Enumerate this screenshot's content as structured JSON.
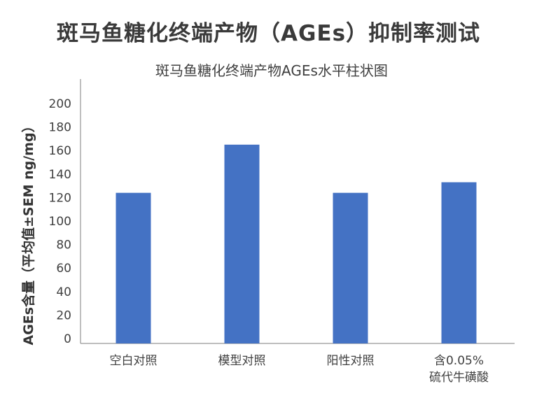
{
  "page_title": "斑马鱼糖化终端产物（AGEs）抑制率测试",
  "chart_data": {
    "type": "bar",
    "title": "斑马鱼糖化终端产物AGEs水平柱状图",
    "ylabel": "AGEs含量（平均值±SEM ng/mg）",
    "xlabel": "",
    "categories": [
      [
        "空白对照"
      ],
      [
        "模型对照"
      ],
      [
        "阳性对照"
      ],
      [
        "含0.05%",
        "硫代牛磺酸"
      ]
    ],
    "values": [
      124,
      165,
      124,
      133
    ],
    "ylim": [
      0,
      200
    ],
    "yticks": [
      0,
      20,
      40,
      60,
      80,
      100,
      120,
      140,
      160,
      180,
      200
    ],
    "bar_color": "#4472C4",
    "grid": false
  }
}
